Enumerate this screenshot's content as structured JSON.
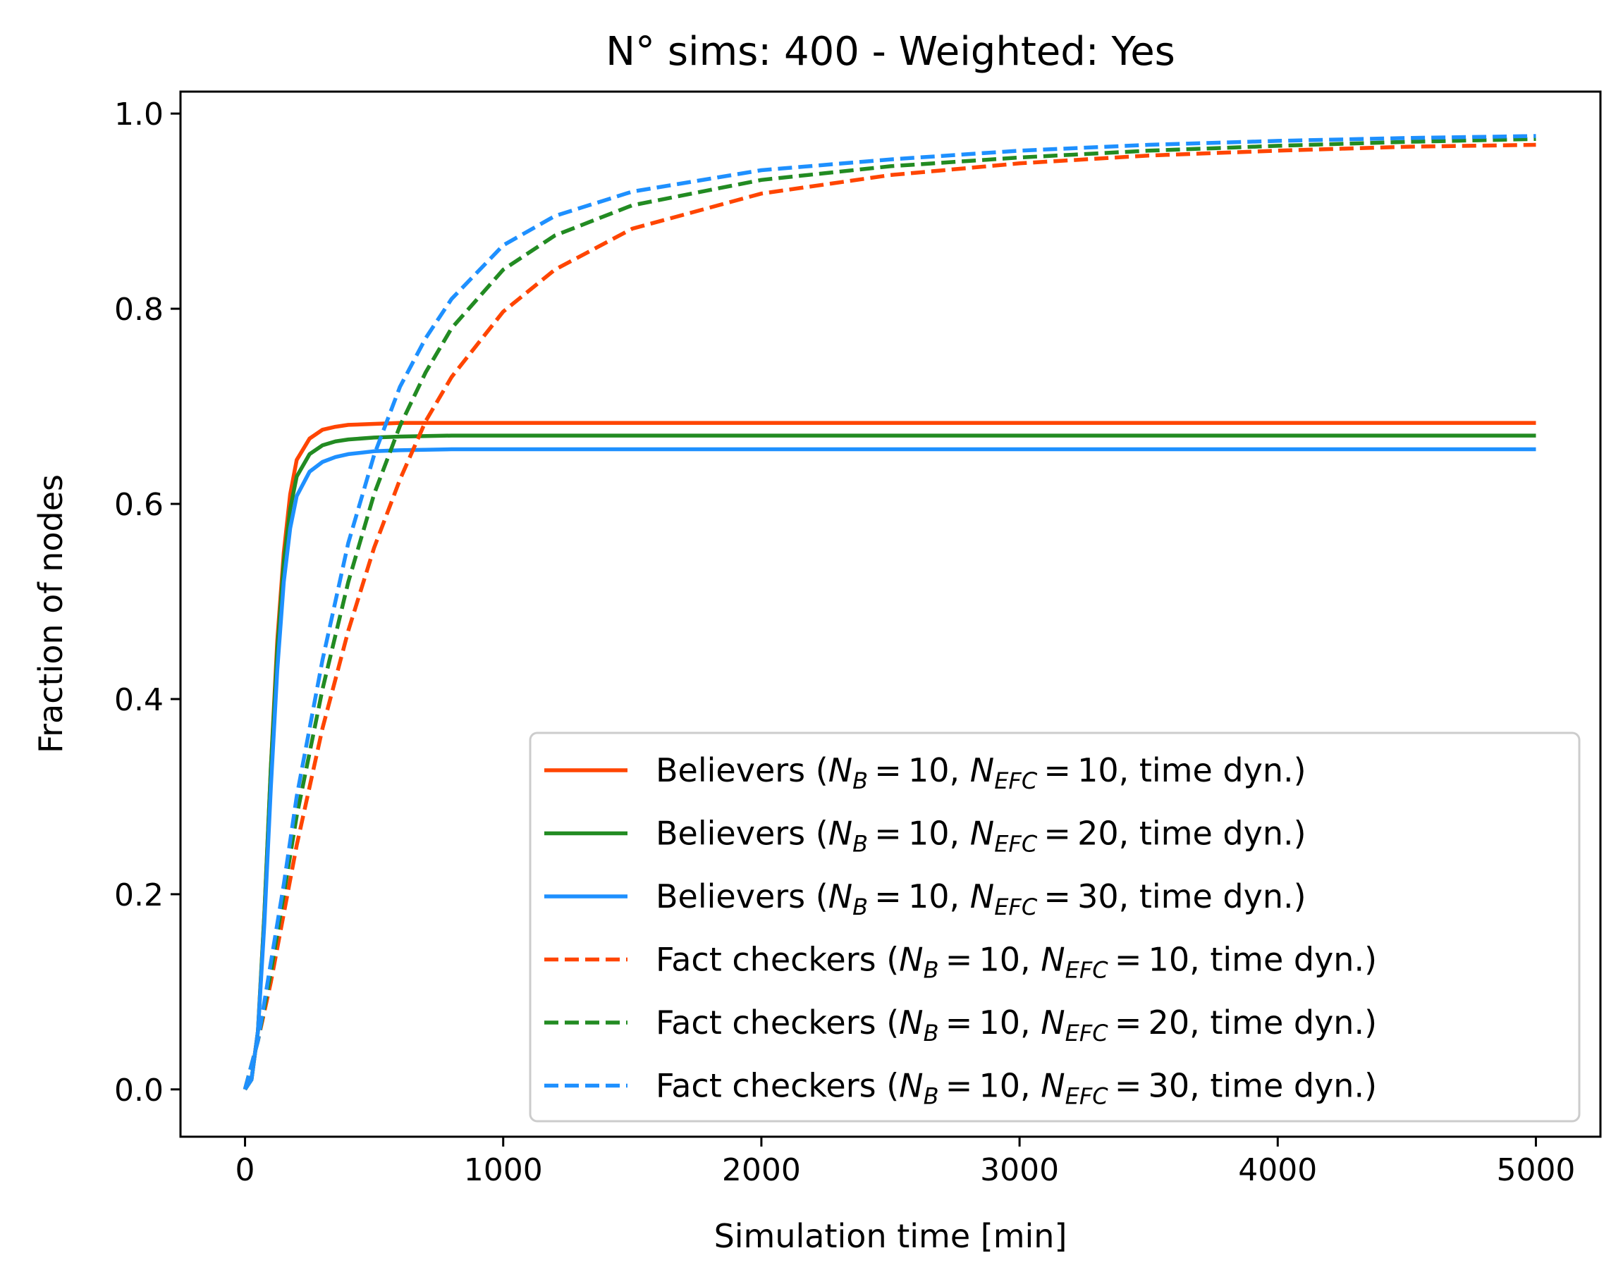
{
  "chart_data": {
    "type": "line",
    "title": "N° sims: 400 - Weighted: Yes",
    "xlabel": "Simulation time [min]",
    "ylabel": "Fraction of nodes",
    "xlim": [
      -250,
      5250
    ],
    "ylim": [
      -0.0485,
      1.0225
    ],
    "xticks": [
      0,
      1000,
      2000,
      3000,
      4000,
      5000
    ],
    "xtick_labels": [
      "0",
      "1000",
      "2000",
      "3000",
      "4000",
      "5000"
    ],
    "yticks": [
      0.0,
      0.2,
      0.4,
      0.6,
      0.8,
      1.0
    ],
    "ytick_labels": [
      "0.0",
      "0.2",
      "0.4",
      "0.6",
      "0.8",
      "1.0"
    ],
    "grid": false,
    "legend_position": "lower-right",
    "series": [
      {
        "name": "believers-efc10",
        "color": "#ff4500",
        "style": "solid",
        "legend": {
          "prefix": "Believers (",
          "nb_value": "10",
          "nefc_value": "10",
          "suffix": ",  time dyn.)"
        },
        "x": [
          0,
          25,
          50,
          75,
          100,
          125,
          150,
          175,
          200,
          250,
          300,
          350,
          400,
          500,
          600,
          800,
          1000,
          1500,
          2000,
          3000,
          4000,
          5000
        ],
        "y": [
          0.0,
          0.01,
          0.06,
          0.18,
          0.33,
          0.46,
          0.55,
          0.61,
          0.645,
          0.667,
          0.676,
          0.679,
          0.681,
          0.682,
          0.683,
          0.683,
          0.683,
          0.683,
          0.683,
          0.683,
          0.683,
          0.683
        ]
      },
      {
        "name": "believers-efc20",
        "color": "#228b22",
        "style": "solid",
        "legend": {
          "prefix": "Believers (",
          "nb_value": "10",
          "nefc_value": "20",
          "suffix": ",  time dyn.)"
        },
        "x": [
          0,
          25,
          50,
          75,
          100,
          125,
          150,
          175,
          200,
          250,
          300,
          350,
          400,
          500,
          600,
          800,
          1000,
          1500,
          2000,
          3000,
          4000,
          5000
        ],
        "y": [
          0.0,
          0.01,
          0.06,
          0.18,
          0.33,
          0.45,
          0.54,
          0.595,
          0.628,
          0.651,
          0.66,
          0.664,
          0.666,
          0.668,
          0.669,
          0.67,
          0.67,
          0.67,
          0.67,
          0.67,
          0.67,
          0.67
        ]
      },
      {
        "name": "believers-efc30",
        "color": "#1e90ff",
        "style": "solid",
        "legend": {
          "prefix": "Believers (",
          "nb_value": "10",
          "nefc_value": "30",
          "suffix": ",  time dyn.)"
        },
        "x": [
          0,
          25,
          50,
          75,
          100,
          125,
          150,
          175,
          200,
          250,
          300,
          350,
          400,
          500,
          600,
          800,
          1000,
          1500,
          2000,
          3000,
          4000,
          5000
        ],
        "y": [
          0.0,
          0.01,
          0.06,
          0.17,
          0.31,
          0.43,
          0.52,
          0.575,
          0.608,
          0.633,
          0.643,
          0.648,
          0.651,
          0.654,
          0.655,
          0.656,
          0.656,
          0.656,
          0.656,
          0.656,
          0.656,
          0.656
        ]
      },
      {
        "name": "fact-checkers-efc10",
        "color": "#ff4500",
        "style": "dashed",
        "legend": {
          "prefix": "Fact checkers (",
          "nb_value": "10",
          "nefc_value": "10",
          "suffix": ",  time dyn.)"
        },
        "x": [
          0,
          50,
          100,
          150,
          200,
          300,
          400,
          500,
          600,
          700,
          800,
          1000,
          1200,
          1500,
          2000,
          2500,
          3000,
          3500,
          4000,
          4500,
          5000
        ],
        "y": [
          0.0,
          0.05,
          0.11,
          0.18,
          0.25,
          0.37,
          0.47,
          0.555,
          0.625,
          0.685,
          0.73,
          0.797,
          0.84,
          0.882,
          0.918,
          0.937,
          0.949,
          0.957,
          0.962,
          0.966,
          0.968
        ]
      },
      {
        "name": "fact-checkers-efc20",
        "color": "#228b22",
        "style": "dashed",
        "legend": {
          "prefix": "Fact checkers (",
          "nb_value": "10",
          "nefc_value": "20",
          "suffix": ",  time dyn.)"
        },
        "x": [
          0,
          50,
          100,
          150,
          200,
          300,
          400,
          500,
          600,
          700,
          800,
          1000,
          1200,
          1500,
          2000,
          2500,
          3000,
          3500,
          4000,
          4500,
          5000
        ],
        "y": [
          0.0,
          0.05,
          0.12,
          0.2,
          0.28,
          0.41,
          0.52,
          0.61,
          0.68,
          0.735,
          0.78,
          0.84,
          0.875,
          0.906,
          0.932,
          0.946,
          0.955,
          0.962,
          0.967,
          0.971,
          0.974
        ]
      },
      {
        "name": "fact-checkers-efc30",
        "color": "#1e90ff",
        "style": "dashed",
        "legend": {
          "prefix": "Fact checkers (",
          "nb_value": "10",
          "nefc_value": "30",
          "suffix": ",  time dyn.)"
        },
        "x": [
          0,
          50,
          100,
          150,
          200,
          300,
          400,
          500,
          600,
          700,
          800,
          1000,
          1200,
          1500,
          2000,
          2500,
          3000,
          3500,
          4000,
          4500,
          5000
        ],
        "y": [
          0.0,
          0.05,
          0.13,
          0.21,
          0.3,
          0.44,
          0.56,
          0.65,
          0.72,
          0.77,
          0.81,
          0.865,
          0.895,
          0.92,
          0.942,
          0.953,
          0.962,
          0.968,
          0.972,
          0.975,
          0.977
        ]
      }
    ]
  }
}
